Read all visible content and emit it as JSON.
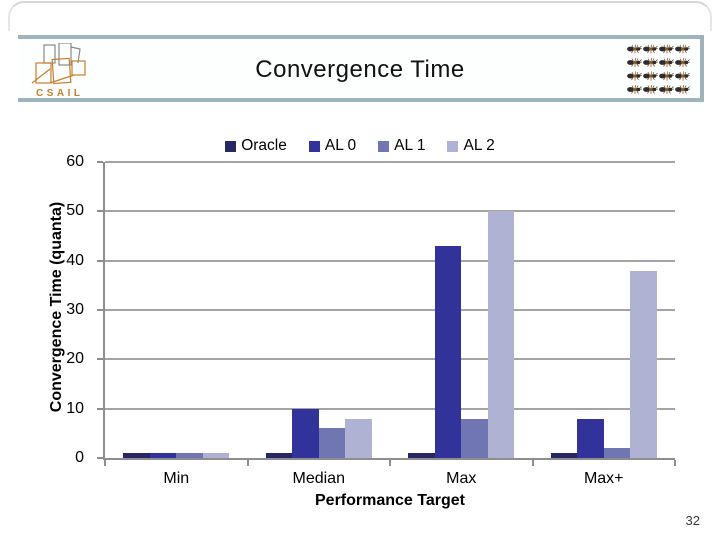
{
  "slide": {
    "title": "Convergence Time",
    "logo_text": "CSAIL",
    "page_number": "32"
  },
  "chart_data": {
    "type": "bar",
    "title": "",
    "categories": [
      "Min",
      "Median",
      "Max",
      "Max+"
    ],
    "series": [
      {
        "name": "Oracle",
        "color": "#272763",
        "values": [
          1,
          1,
          1,
          1
        ]
      },
      {
        "name": "AL 0",
        "color": "#31329A",
        "values": [
          1,
          10,
          43,
          8
        ]
      },
      {
        "name": "AL 1",
        "color": "#7076B2",
        "values": [
          1,
          6,
          8,
          2
        ]
      },
      {
        "name": "AL 2",
        "color": "#AFB2D2",
        "values": [
          1,
          8,
          50,
          38
        ]
      }
    ],
    "xlabel": "Performance Target",
    "ylabel": "Convergence Time (quanta)",
    "ylim": [
      0,
      60
    ],
    "yticks": [
      0,
      10,
      20,
      30,
      40,
      50,
      60
    ],
    "grid": true,
    "legend_position": "top"
  },
  "theme": {
    "band_line_color": "#9EB3BA",
    "axis_color": "#8E8E8E",
    "gridline_color": "#A4A4A4",
    "logo_orange": "#C6802D"
  }
}
